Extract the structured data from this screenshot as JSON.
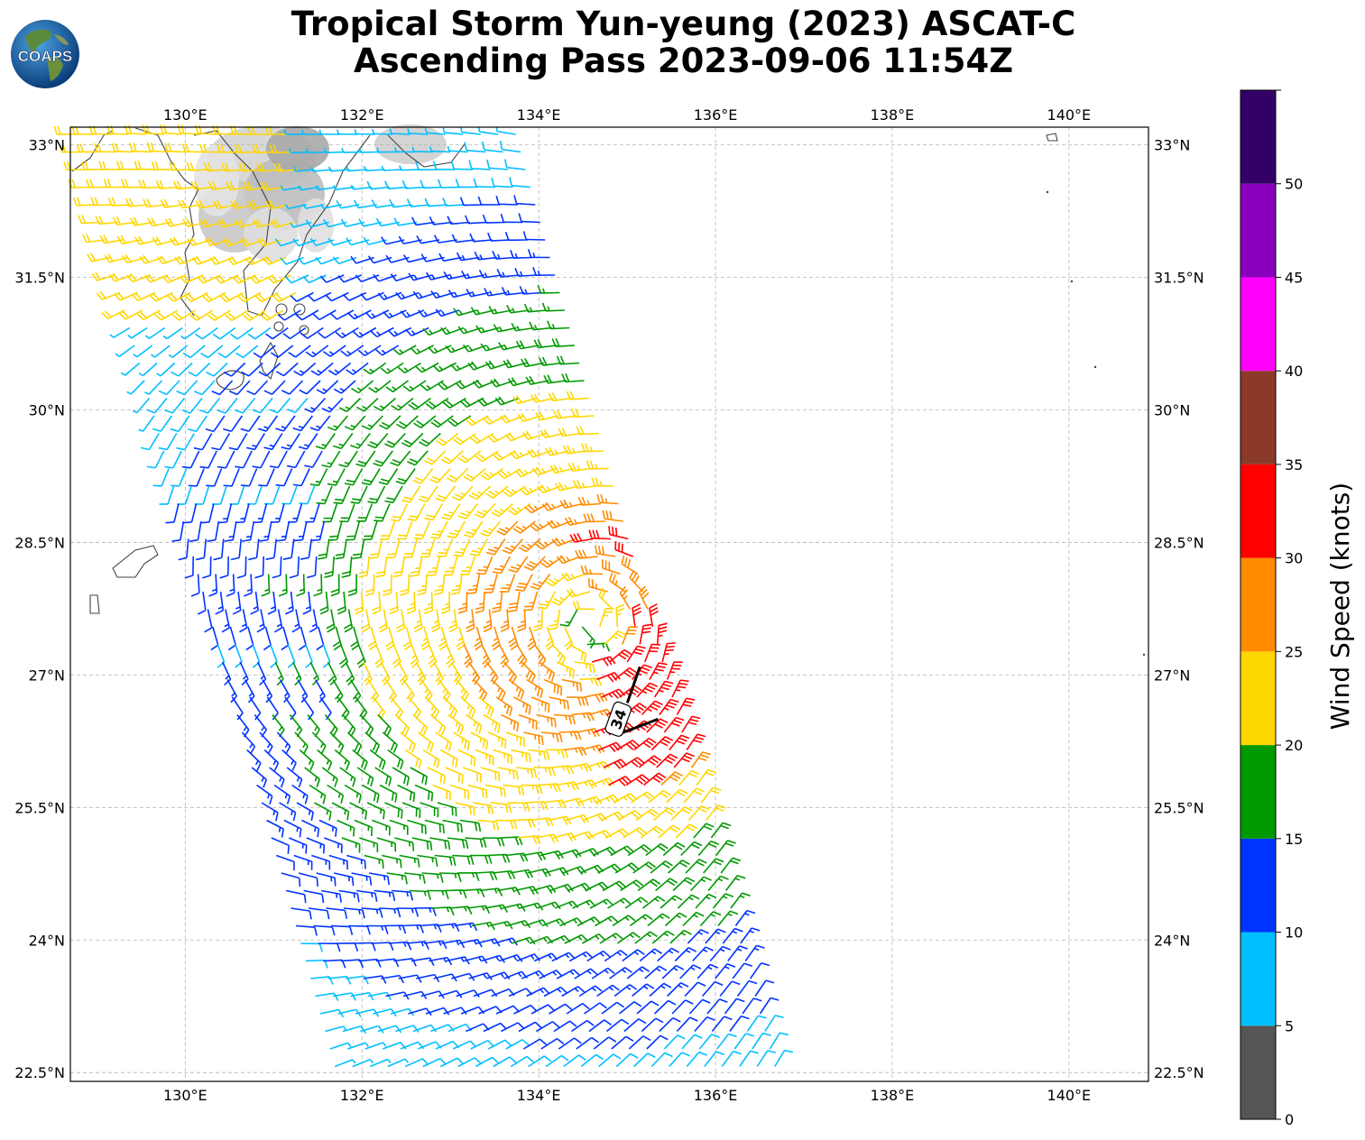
{
  "title": {
    "line1": "Tropical Storm Yun-yeung (2023) ASCAT-C",
    "line2": "Ascending Pass 2023-09-06 11:54Z"
  },
  "logo": {
    "text": "COAPS",
    "icon": "globe-logo-icon"
  },
  "map": {
    "lon_labels": [
      "130°E",
      "132°E",
      "134°E",
      "136°E",
      "138°E",
      "140°E"
    ],
    "lon_values": [
      130,
      132,
      134,
      136,
      138,
      140
    ],
    "lat_labels": [
      "33°N",
      "31.5°N",
      "30°N",
      "28.5°N",
      "27°N",
      "25.5°N",
      "24°N",
      "22.5°N"
    ],
    "lat_values": [
      33,
      31.5,
      30,
      28.5,
      27,
      25.5,
      24,
      22.5
    ],
    "lon_range": [
      128.7,
      140.9
    ],
    "lat_range": [
      22.4,
      33.2
    ],
    "grid": true,
    "storm_center": {
      "lon": 134.6,
      "lat": 27.6
    },
    "storm_label": {
      "text": "34",
      "lon": 134.9,
      "lat": 26.5
    },
    "swath": {
      "north_edge": {
        "lat": 33.2,
        "west_lon": 128.7,
        "east_lon": 133.9
      },
      "south_edge": {
        "lat": 22.4,
        "west_lon": 131.7,
        "east_lon": 136.8
      }
    }
  },
  "colorbar": {
    "label": "Wind Speed (knots)",
    "tick_labels": [
      "0",
      "5",
      "10",
      "15",
      "20",
      "25",
      "30",
      "35",
      "40",
      "45",
      "50"
    ],
    "bins": [
      {
        "min": 0,
        "max": 5,
        "color": "#555555"
      },
      {
        "min": 5,
        "max": 10,
        "color": "#00bfff"
      },
      {
        "min": 10,
        "max": 15,
        "color": "#0033ff"
      },
      {
        "min": 15,
        "max": 20,
        "color": "#009900"
      },
      {
        "min": 20,
        "max": 25,
        "color": "#ffd700"
      },
      {
        "min": 25,
        "max": 30,
        "color": "#ff8c00"
      },
      {
        "min": 30,
        "max": 35,
        "color": "#ff0000"
      },
      {
        "min": 35,
        "max": 40,
        "color": "#8b3a2a"
      },
      {
        "min": 40,
        "max": 45,
        "color": "#ff00ff"
      },
      {
        "min": 45,
        "max": 50,
        "color": "#8800bb"
      },
      {
        "min": 50,
        "max": 55,
        "color": "#330066"
      }
    ]
  }
}
